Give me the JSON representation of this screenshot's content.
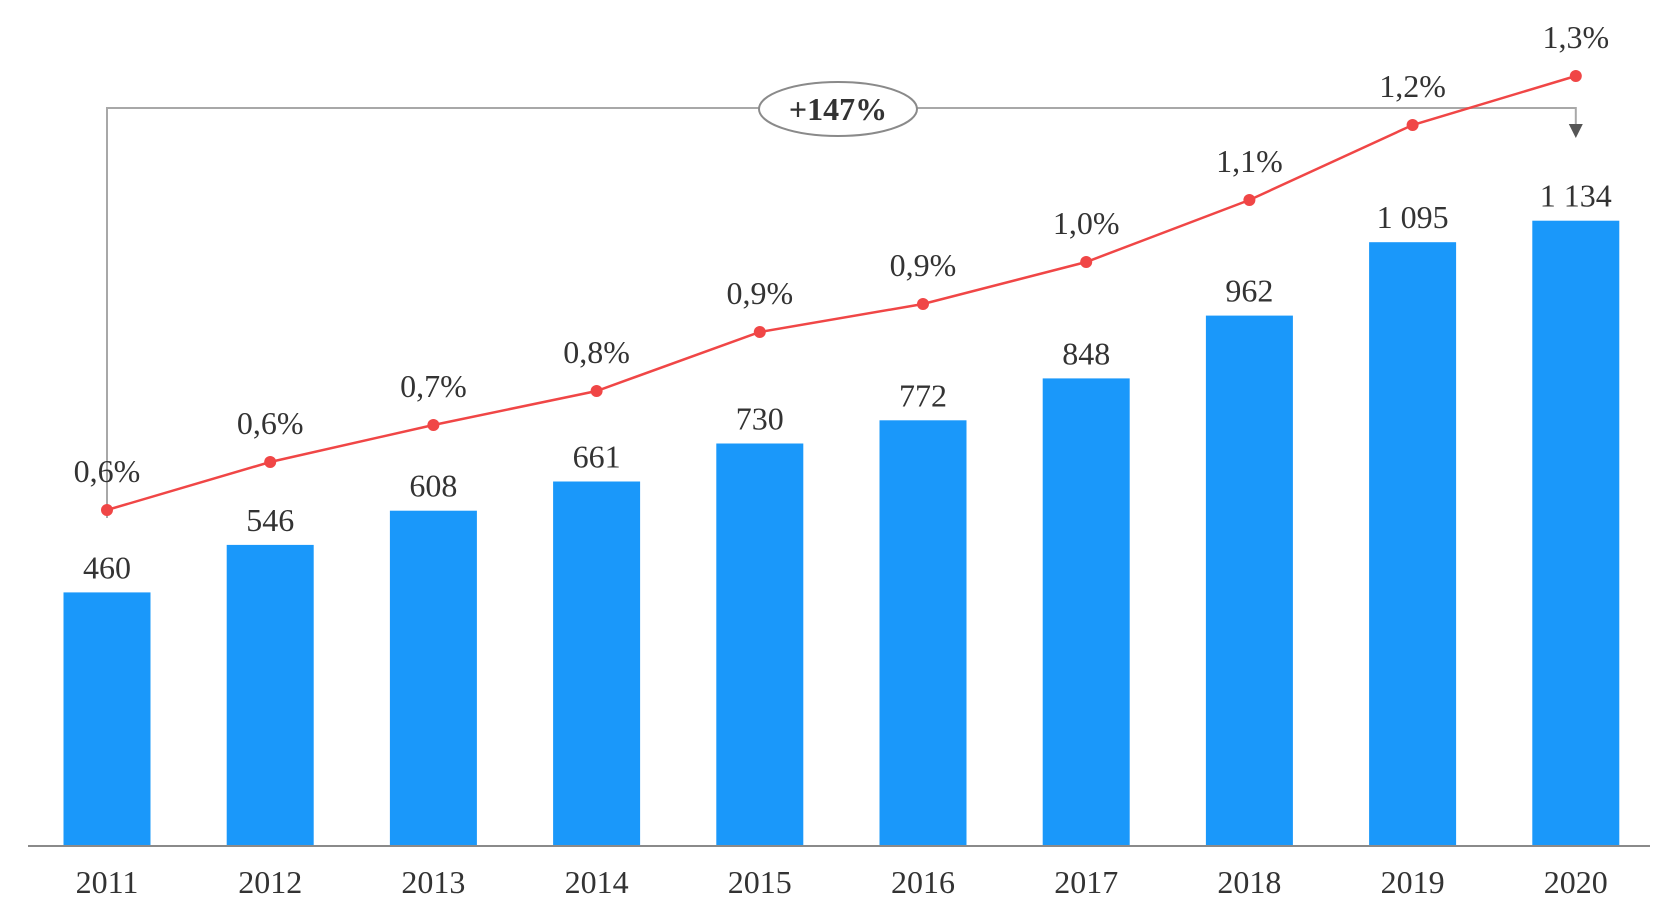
{
  "chart_data": {
    "type": "bar",
    "categories": [
      "2011",
      "2012",
      "2013",
      "2014",
      "2015",
      "2016",
      "2017",
      "2018",
      "2019",
      "2020"
    ],
    "series": [
      {
        "type": "bar",
        "values": [
          460,
          546,
          608,
          661,
          730,
          772,
          848,
          962,
          1095,
          1134
        ],
        "value_labels": [
          "460",
          "546",
          "608",
          "661",
          "730",
          "772",
          "848",
          "962",
          "1 095",
          "1 134"
        ],
        "color": "#1a98fa"
      },
      {
        "type": "line",
        "values": [
          0.6,
          0.6,
          0.7,
          0.8,
          0.9,
          0.9,
          1.0,
          1.1,
          1.2,
          1.3
        ],
        "value_labels": [
          "0,6%",
          "0,6%",
          "0,7%",
          "0,8%",
          "0,9%",
          "0,9%",
          "1,0%",
          "1,1%",
          "1,2%",
          "1,3%"
        ],
        "color": "#f04646"
      }
    ],
    "annotation": {
      "text": "+147%",
      "from": "2011",
      "to": "2020"
    },
    "ylim": [
      0,
      1250
    ],
    "grid": false,
    "legend": "none"
  }
}
